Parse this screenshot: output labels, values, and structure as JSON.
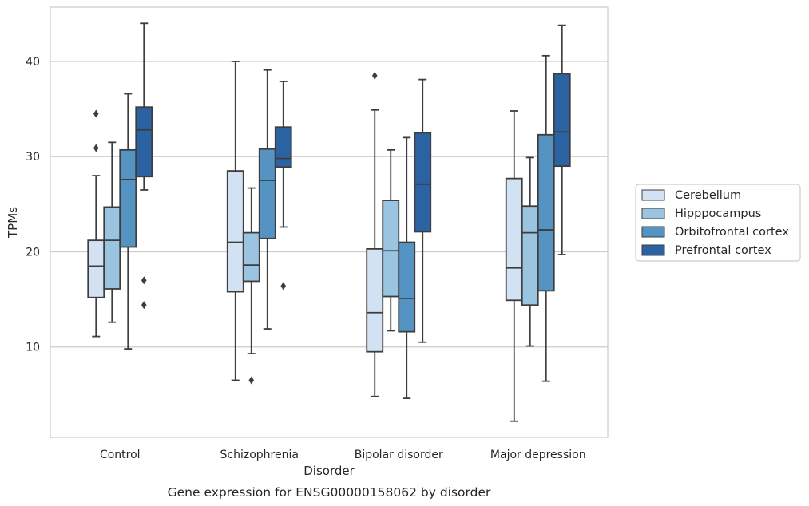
{
  "chart_data": {
    "type": "box",
    "caption": "Gene expression for ENSG00000158062 by disorder",
    "xlabel": "Disorder",
    "ylabel": "TPMs",
    "ylim": [
      0.5,
      45.7
    ],
    "yticks": [
      10,
      20,
      30,
      40
    ],
    "grid": true,
    "legend_position": "right",
    "categories": [
      "Control",
      "Schizophrenia",
      "Bipolar disorder",
      "Major depression"
    ],
    "series": [
      {
        "name": "Cerebellum",
        "color": "#d2e2f2",
        "boxes": [
          {
            "min": 11.1,
            "q1": 15.2,
            "median": 18.5,
            "q3": 21.2,
            "max": 28.0,
            "outliers": [
              34.5,
              30.9
            ]
          },
          {
            "min": 6.5,
            "q1": 15.8,
            "median": 21.0,
            "q3": 28.5,
            "max": 40.0,
            "outliers": []
          },
          {
            "min": 4.8,
            "q1": 9.5,
            "median": 13.6,
            "q3": 20.3,
            "max": 34.9,
            "outliers": [
              38.5
            ]
          },
          {
            "min": 2.2,
            "q1": 14.9,
            "median": 18.3,
            "q3": 27.7,
            "max": 34.8,
            "outliers": []
          }
        ]
      },
      {
        "name": "Hipppocampus",
        "color": "#9ac4df",
        "boxes": [
          {
            "min": 12.6,
            "q1": 16.1,
            "median": 21.2,
            "q3": 24.7,
            "max": 31.5,
            "outliers": []
          },
          {
            "min": 9.3,
            "q1": 16.9,
            "median": 18.6,
            "q3": 22.0,
            "max": 26.7,
            "outliers": [
              6.5
            ]
          },
          {
            "min": 11.7,
            "q1": 15.3,
            "median": 20.1,
            "q3": 25.4,
            "max": 30.7,
            "outliers": []
          },
          {
            "min": 10.1,
            "q1": 14.4,
            "median": 22.0,
            "q3": 24.8,
            "max": 29.9,
            "outliers": []
          }
        ]
      },
      {
        "name": "Orbitofrontal cortex",
        "color": "#5593c3",
        "boxes": [
          {
            "min": 9.8,
            "q1": 20.5,
            "median": 27.6,
            "q3": 30.7,
            "max": 36.6,
            "outliers": []
          },
          {
            "min": 11.9,
            "q1": 21.4,
            "median": 27.5,
            "q3": 30.8,
            "max": 39.1,
            "outliers": []
          },
          {
            "min": 4.6,
            "q1": 11.6,
            "median": 15.1,
            "q3": 21.0,
            "max": 32.0,
            "outliers": []
          },
          {
            "min": 6.4,
            "q1": 15.9,
            "median": 22.3,
            "q3": 32.3,
            "max": 40.6,
            "outliers": []
          }
        ]
      },
      {
        "name": "Prefrontal cortex",
        "color": "#2b62a1",
        "boxes": [
          {
            "min": 26.5,
            "q1": 27.9,
            "median": 32.8,
            "q3": 35.2,
            "max": 44.0,
            "outliers": [
              17.0,
              14.4
            ]
          },
          {
            "min": 22.6,
            "q1": 28.9,
            "median": 29.8,
            "q3": 33.1,
            "max": 37.9,
            "outliers": [
              16.4
            ]
          },
          {
            "min": 10.5,
            "q1": 22.1,
            "median": 27.1,
            "q3": 32.5,
            "max": 38.1,
            "outliers": []
          },
          {
            "min": 19.7,
            "q1": 29.0,
            "median": 32.6,
            "q3": 38.7,
            "max": 43.8,
            "outliers": []
          }
        ]
      }
    ]
  }
}
